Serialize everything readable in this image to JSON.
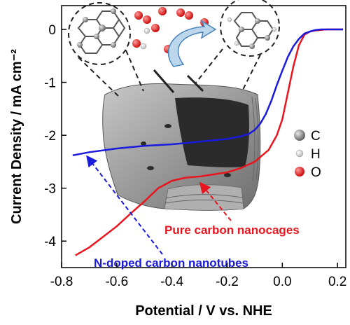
{
  "chart_data": {
    "type": "line",
    "xlabel": "Potential / V vs. NHE",
    "ylabel": "Current Density / mA cm⁻²",
    "xlim": [
      -0.8,
      0.23
    ],
    "ylim": [
      -4.5,
      0.45
    ],
    "xticks": [
      "-0.8",
      "-0.6",
      "-0.4",
      "-0.2",
      "0.0",
      "0.2"
    ],
    "xtick_values": [
      -0.8,
      -0.6,
      -0.4,
      -0.2,
      0.0,
      0.2
    ],
    "yticks": [
      "0",
      "-1",
      "-2",
      "-3",
      "-4"
    ],
    "ytick_values": [
      0,
      -1,
      -2,
      -3,
      -4
    ],
    "grid": false,
    "series": [
      {
        "name": "Pure carbon nanocages",
        "color": "#e8141e",
        "x": [
          -0.75,
          -0.7,
          -0.65,
          -0.6,
          -0.55,
          -0.5,
          -0.45,
          -0.4,
          -0.35,
          -0.3,
          -0.25,
          -0.2,
          -0.15,
          -0.1,
          -0.05,
          -0.02,
          0.0,
          0.02,
          0.04,
          0.06,
          0.08,
          0.1,
          0.12,
          0.14,
          0.16,
          0.2,
          0.22
        ],
        "y": [
          -4.27,
          -4.12,
          -3.92,
          -3.72,
          -3.48,
          -3.25,
          -3.0,
          -2.86,
          -2.8,
          -2.78,
          -2.74,
          -2.7,
          -2.62,
          -2.5,
          -2.28,
          -2.0,
          -1.7,
          -1.2,
          -0.7,
          -0.3,
          -0.1,
          -0.04,
          -0.02,
          -0.01,
          0.0,
          0.0,
          0.0
        ]
      },
      {
        "name": "N-doped carbon nanotubes",
        "color": "#1a1adc",
        "x": [
          -0.76,
          -0.7,
          -0.6,
          -0.5,
          -0.4,
          -0.3,
          -0.2,
          -0.15,
          -0.12,
          -0.1,
          -0.08,
          -0.06,
          -0.04,
          -0.02,
          0.0,
          0.02,
          0.04,
          0.06,
          0.08,
          0.1,
          0.12,
          0.14,
          0.16,
          0.2,
          0.22
        ],
        "y": [
          -2.38,
          -2.32,
          -2.25,
          -2.2,
          -2.17,
          -2.12,
          -2.07,
          -2.02,
          -1.97,
          -1.9,
          -1.78,
          -1.6,
          -1.35,
          -1.05,
          -0.78,
          -0.52,
          -0.32,
          -0.18,
          -0.08,
          -0.04,
          -0.01,
          0.0,
          0.0,
          0.0,
          0.0
        ]
      }
    ],
    "annotations": {
      "red_label": "Pure carbon nanocages",
      "blue_label": "N-doped carbon nanotubes"
    },
    "legend": {
      "placement": "right",
      "items": [
        {
          "label": "C",
          "color": "#8a8a8a"
        },
        {
          "label": "H",
          "color": "#f4f4f4"
        },
        {
          "label": "O",
          "color": "#e02020"
        }
      ]
    }
  }
}
